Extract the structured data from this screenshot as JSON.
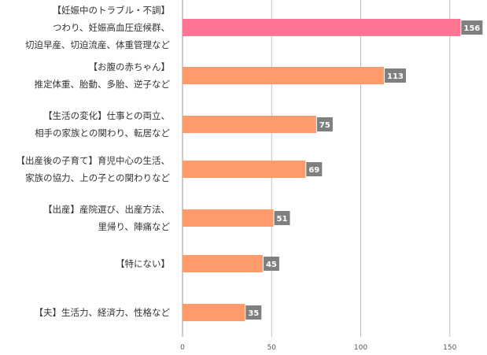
{
  "chart_data": {
    "type": "bar",
    "orientation": "horizontal",
    "title": "",
    "xlabel": "",
    "ylabel": "",
    "xlim": [
      0,
      170
    ],
    "xticks": [
      0,
      50,
      100,
      150
    ],
    "grid": true,
    "categories": [
      [
        "【妊娠中のトラブル・不調】",
        "つわり、妊娠高血圧症候群、",
        "切迫早産、切迫流産、体重管理など"
      ],
      [
        "【お腹の赤ちゃん】",
        "推定体重、胎動、多胎、逆子など"
      ],
      [
        "【生活の変化】仕事との両立、",
        "相手の家族との関わり、転居など"
      ],
      [
        "【出産後の子育て】育児中心の生活、",
        "家族の協力、上の子との関わりなど"
      ],
      [
        "【出産】産院選び、出産方法、",
        "里帰り、陣痛など"
      ],
      [
        "【特にない】"
      ],
      [
        "【夫】生活力、経済力、性格など"
      ]
    ],
    "values": [
      156,
      113,
      75,
      69,
      51,
      45,
      35
    ],
    "bar_colors": [
      "#ff7592",
      "#ff9a6a",
      "#ff9a6a",
      "#ff9a6a",
      "#ff9a6a",
      "#ff9a6a",
      "#ff9a6a"
    ],
    "label_bg_color": "#7f7f7f",
    "grid_color": "#bfbfbf"
  }
}
